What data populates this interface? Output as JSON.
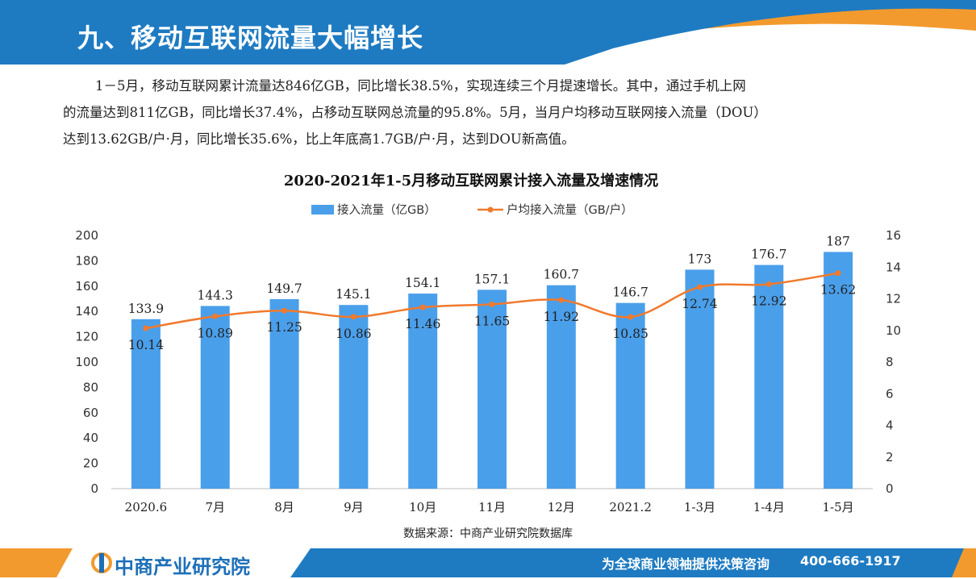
{
  "header": {
    "title": "九、移动互联网流量大幅增长"
  },
  "paragraph": {
    "lines": [
      "1－5月，移动互联网累计流量达846亿GB，同比增长38.5%，实现连续三个月提速增长。其中，通过手机上网",
      "的流量达到811亿GB，同比增长37.4%，占移动互联网总流量的95.8%。5月，当月户均移动互联网接入流量（DOU）",
      "达到13.62GB/户·月，同比增长35.6%，比上年底高1.7GB/户·月，达到DOU新高值。"
    ]
  },
  "colors": {
    "bar": "#4a9fea",
    "line": "#f07a2e",
    "header_blue": "#1e7bc2",
    "header_orange": "#f39a2e"
  },
  "chart_data": {
    "type": "bar",
    "title": "2020-2021年1-5月移动互联网累计接入流量及增速情况",
    "categories": [
      "2020.6",
      "7月",
      "8月",
      "9月",
      "10月",
      "11月",
      "12月",
      "2021.2",
      "1-3月",
      "1-4月",
      "1-5月"
    ],
    "series": [
      {
        "name": "接入流量（亿GB）",
        "type": "bar",
        "axis": "left",
        "values": [
          133.9,
          144.3,
          149.7,
          145.1,
          154.1,
          157.1,
          160.7,
          146.7,
          173,
          176.7,
          187
        ]
      },
      {
        "name": "户均接入流量（GB/户）",
        "type": "line",
        "axis": "right",
        "values": [
          10.14,
          10.89,
          11.25,
          10.86,
          11.46,
          11.65,
          11.92,
          10.85,
          12.74,
          12.92,
          13.62
        ]
      }
    ],
    "y_left": {
      "min": 0,
      "max": 200,
      "ticks": [
        0,
        20,
        40,
        60,
        80,
        100,
        120,
        140,
        160,
        180,
        200
      ]
    },
    "y_right": {
      "min": 0,
      "max": 16,
      "ticks": [
        0,
        2,
        4,
        6,
        8,
        10,
        12,
        14,
        16
      ]
    },
    "legend_position": "top",
    "grid": false
  },
  "source": "数据来源：中商产业研究院数据库",
  "footer": {
    "logo_text": "中商产业研究院",
    "slogan": "为全球商业领袖提供决策咨询",
    "phone": "400-666-1917"
  }
}
